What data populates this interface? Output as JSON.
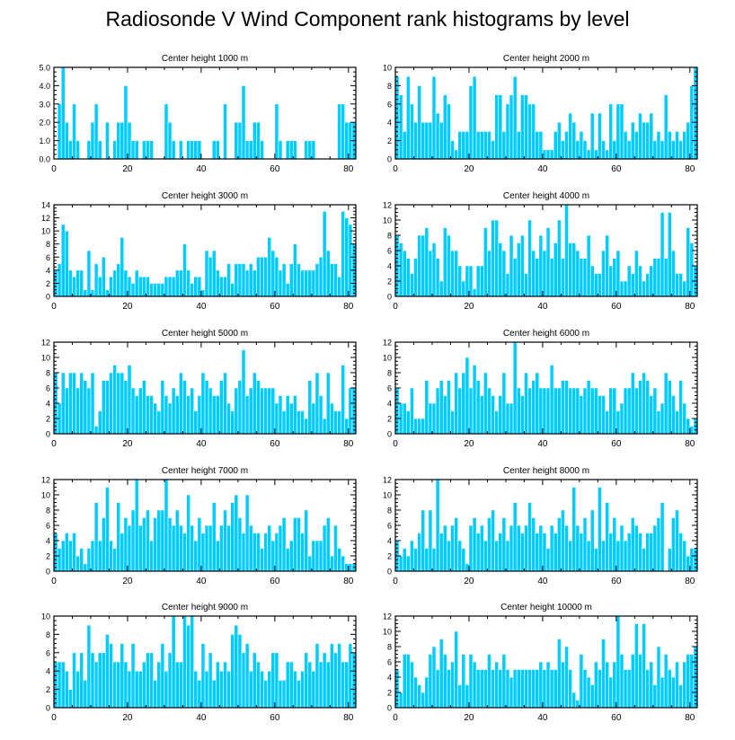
{
  "title": "Radiosonde V Wind Component rank histograms by level",
  "colors": {
    "bar": "#00ccff",
    "bar_edge": "#ffffff",
    "axis": "#000000"
  },
  "chart_data": [
    {
      "type": "bar",
      "title": "Center height 1000 m",
      "xlim": [
        0,
        82
      ],
      "ylim": [
        0,
        5
      ],
      "xticks": [
        "0",
        "20",
        "40",
        "60",
        "80"
      ],
      "yticks": [
        "0.0",
        "1.0",
        "2.0",
        "3.0",
        "4.0",
        "5.0"
      ],
      "values": [
        0,
        3,
        5,
        2,
        1,
        3,
        1,
        0,
        0,
        1,
        2,
        3,
        1,
        0,
        2,
        0,
        1,
        2,
        2,
        4,
        2,
        1,
        1,
        0,
        1,
        1,
        1,
        0,
        0,
        0,
        3,
        2,
        1,
        0,
        1,
        0,
        1,
        1,
        1,
        1,
        0,
        0,
        0,
        1,
        1,
        0,
        3,
        0,
        0,
        2,
        2,
        4,
        1,
        1,
        2,
        2,
        1,
        0,
        0,
        0,
        3,
        1,
        0,
        1,
        1,
        1,
        0,
        0,
        1,
        1,
        1,
        0,
        0,
        0,
        0,
        0,
        0,
        3,
        3,
        2,
        2,
        2
      ]
    },
    {
      "type": "bar",
      "title": "Center height 2000 m",
      "xlim": [
        0,
        82
      ],
      "ylim": [
        0,
        10
      ],
      "xticks": [
        "0",
        "20",
        "40",
        "60",
        "80"
      ],
      "yticks": [
        "0",
        "2",
        "4",
        "6",
        "8",
        "10"
      ],
      "values": [
        9,
        7,
        3,
        9,
        6,
        4,
        8,
        4,
        4,
        4,
        9,
        5,
        4,
        7,
        6,
        2,
        1,
        3,
        3,
        3,
        8,
        9,
        3,
        3,
        3,
        3,
        2,
        7,
        7,
        3,
        6,
        7,
        9,
        3,
        7,
        7,
        6,
        6,
        3,
        3,
        1,
        1,
        1,
        3,
        4,
        2,
        3,
        5,
        4,
        2,
        3,
        2,
        1,
        5,
        1,
        5,
        2,
        1,
        6,
        2,
        6,
        6,
        3,
        2,
        4,
        3,
        5,
        4,
        4,
        5,
        2,
        3,
        2,
        7,
        3,
        2,
        3,
        2,
        3,
        4,
        8,
        10
      ]
    },
    {
      "type": "bar",
      "title": "Center height 3000 m",
      "xlim": [
        0,
        82
      ],
      "ylim": [
        0,
        14
      ],
      "xticks": [
        "0",
        "20",
        "40",
        "60",
        "80"
      ],
      "yticks": [
        "0",
        "2",
        "4",
        "6",
        "8",
        "10",
        "12",
        "14"
      ],
      "values": [
        4,
        5,
        11,
        10,
        4,
        3,
        4,
        4,
        1,
        7,
        1,
        5,
        3,
        6,
        1,
        3,
        4,
        5,
        9,
        4,
        3,
        2,
        4,
        3,
        3,
        3,
        2,
        2,
        2,
        2,
        3,
        3,
        3,
        4,
        4,
        8,
        4,
        2,
        3,
        3,
        1,
        7,
        6,
        7,
        4,
        3,
        3,
        5,
        2,
        5,
        5,
        5,
        4,
        5,
        4,
        6,
        6,
        6,
        9,
        7,
        6,
        4,
        5,
        2,
        5,
        8,
        5,
        4,
        4,
        4,
        4,
        5,
        6,
        13,
        7,
        5,
        5,
        3,
        13,
        12,
        11,
        8
      ]
    },
    {
      "type": "bar",
      "title": "Center height 4000 m",
      "xlim": [
        0,
        82
      ],
      "ylim": [
        0,
        12
      ],
      "xticks": [
        "0",
        "20",
        "40",
        "60",
        "80"
      ],
      "yticks": [
        "0",
        "2",
        "4",
        "6",
        "8",
        "10",
        "12"
      ],
      "values": [
        8,
        7,
        6,
        5,
        3,
        5,
        8,
        8,
        9,
        6,
        7,
        5,
        2,
        9,
        8,
        6,
        6,
        4,
        2,
        4,
        4,
        1,
        4,
        4,
        9,
        6,
        10,
        10,
        7,
        6,
        3,
        8,
        5,
        7,
        8,
        3,
        10,
        6,
        5,
        8,
        6,
        9,
        5,
        7,
        10,
        5,
        12,
        7,
        7,
        6,
        5,
        5,
        8,
        4,
        3,
        3,
        6,
        8,
        4,
        5,
        6,
        2,
        2,
        4,
        3,
        6,
        4,
        2,
        3,
        4,
        5,
        5,
        11,
        5,
        11,
        6,
        3,
        3,
        2,
        9,
        7,
        4
      ]
    },
    {
      "type": "bar",
      "title": "Center height 5000 m",
      "xlim": [
        0,
        82
      ],
      "ylim": [
        0,
        12
      ],
      "xticks": [
        "0",
        "20",
        "40",
        "60",
        "80"
      ],
      "yticks": [
        "0",
        "2",
        "4",
        "6",
        "8",
        "10",
        "12"
      ],
      "values": [
        8,
        4,
        8,
        6,
        8,
        8,
        6,
        8,
        7,
        6,
        8,
        1,
        3,
        7,
        7,
        8,
        9,
        8,
        8,
        7,
        9,
        6,
        5,
        6,
        7,
        5,
        5,
        4,
        3,
        7,
        5,
        4,
        6,
        5,
        8,
        7,
        5,
        6,
        3,
        5,
        8,
        7,
        6,
        5,
        5,
        7,
        8,
        4,
        3,
        6,
        7,
        11,
        5,
        6,
        8,
        7,
        6,
        6,
        6,
        6,
        4,
        5,
        3,
        5,
        4,
        5,
        3,
        3,
        2,
        7,
        4,
        8,
        5,
        2,
        8,
        4,
        3,
        3,
        9,
        2,
        6,
        6
      ]
    },
    {
      "type": "bar",
      "title": "Center height 6000 m",
      "xlim": [
        0,
        82
      ],
      "ylim": [
        0,
        12
      ],
      "xticks": [
        "0",
        "20",
        "40",
        "60",
        "80"
      ],
      "yticks": [
        "0",
        "2",
        "4",
        "6",
        "8",
        "10",
        "12"
      ],
      "values": [
        6,
        4,
        4,
        3,
        6,
        2,
        2,
        2,
        7,
        4,
        4,
        6,
        7,
        5,
        7,
        3,
        8,
        6,
        8,
        10,
        6,
        9,
        7,
        5,
        8,
        6,
        5,
        3,
        5,
        8,
        4,
        4,
        12,
        6,
        5,
        8,
        6,
        7,
        8,
        6,
        6,
        6,
        9,
        6,
        6,
        7,
        7,
        6,
        6,
        6,
        5,
        6,
        7,
        6,
        6,
        5,
        5,
        3,
        6,
        6,
        3,
        4,
        6,
        6,
        8,
        6,
        7,
        8,
        7,
        5,
        6,
        3,
        4,
        8,
        7,
        5,
        3,
        7,
        4,
        2,
        1,
        2
      ]
    },
    {
      "type": "bar",
      "title": "Center height 7000 m",
      "xlim": [
        0,
        82
      ],
      "ylim": [
        0,
        12
      ],
      "xticks": [
        "0",
        "20",
        "40",
        "60",
        "80"
      ],
      "yticks": [
        "0",
        "2",
        "4",
        "6",
        "8",
        "10",
        "12"
      ],
      "values": [
        5,
        3,
        4,
        5,
        4,
        5,
        2,
        3,
        1,
        3,
        4,
        9,
        4,
        7,
        11,
        4,
        3,
        9,
        5,
        7,
        6,
        8,
        12,
        6,
        7,
        8,
        4,
        7,
        8,
        8,
        12,
        7,
        6,
        8,
        6,
        5,
        10,
        6,
        4,
        7,
        5,
        6,
        6,
        9,
        4,
        6,
        8,
        6,
        9,
        10,
        7,
        5,
        10,
        6,
        5,
        5,
        3,
        5,
        6,
        4,
        5,
        6,
        7,
        3,
        4,
        7,
        7,
        5,
        8,
        2,
        4,
        4,
        4,
        6,
        7,
        2,
        6,
        3,
        2,
        1,
        1,
        1
      ]
    },
    {
      "type": "bar",
      "title": "Center height 8000 m",
      "xlim": [
        0,
        82
      ],
      "ylim": [
        0,
        12
      ],
      "xticks": [
        "0",
        "20",
        "40",
        "60",
        "80"
      ],
      "yticks": [
        "0",
        "2",
        "4",
        "6",
        "8",
        "10",
        "12"
      ],
      "values": [
        4,
        2,
        3,
        2,
        4,
        3,
        5,
        8,
        3,
        8,
        3,
        12,
        5,
        6,
        4,
        6,
        7,
        4,
        3,
        1,
        6,
        7,
        5,
        6,
        4,
        7,
        8,
        4,
        5,
        7,
        4,
        6,
        9,
        6,
        5,
        6,
        9,
        7,
        5,
        6,
        5,
        3,
        6,
        5,
        7,
        8,
        6,
        4,
        11,
        6,
        5,
        7,
        4,
        8,
        3,
        11,
        4,
        9,
        5,
        7,
        4,
        6,
        4,
        5,
        7,
        6,
        5,
        3,
        5,
        5,
        6,
        7,
        9,
        0,
        3,
        7,
        8,
        5,
        4,
        2,
        3,
        3
      ]
    },
    {
      "type": "bar",
      "title": "Center height 9000 m",
      "xlim": [
        0,
        82
      ],
      "ylim": [
        0,
        10
      ],
      "xticks": [
        "0",
        "20",
        "40",
        "60",
        "80"
      ],
      "yticks": [
        "0",
        "2",
        "4",
        "6",
        "8",
        "10"
      ],
      "values": [
        5,
        5,
        5,
        4,
        2,
        6,
        4,
        6,
        3,
        9,
        6,
        5,
        6,
        6,
        8,
        7,
        5,
        5,
        7,
        5,
        4,
        7,
        4,
        4,
        5,
        6,
        6,
        3,
        5,
        7,
        4,
        6,
        10,
        5,
        5,
        10,
        9,
        10,
        4,
        3,
        7,
        4,
        6,
        3,
        5,
        4,
        5,
        4,
        8,
        9,
        8,
        6,
        7,
        4,
        6,
        5,
        4,
        3,
        4,
        6,
        6,
        3,
        3,
        5,
        5,
        4,
        3,
        4,
        6,
        5,
        4,
        7,
        5,
        6,
        5,
        7,
        6,
        7,
        5,
        5,
        7,
        6
      ]
    },
    {
      "type": "bar",
      "title": "Center height 10000 m",
      "xlim": [
        0,
        82
      ],
      "ylim": [
        0,
        12
      ],
      "xticks": [
        "0",
        "20",
        "40",
        "60",
        "80"
      ],
      "yticks": [
        "0",
        "2",
        "4",
        "6",
        "8",
        "10",
        "12"
      ],
      "values": [
        5,
        2,
        7,
        7,
        6,
        4,
        3,
        2,
        4,
        7,
        8,
        5,
        9,
        7,
        5,
        6,
        10,
        3,
        7,
        3,
        7,
        6,
        5,
        5,
        5,
        7,
        5,
        6,
        5,
        7,
        5,
        4,
        5,
        5,
        5,
        5,
        5,
        5,
        5,
        6,
        5,
        6,
        5,
        5,
        9,
        6,
        8,
        5,
        2,
        1,
        7,
        5,
        4,
        3,
        6,
        5,
        9,
        6,
        4,
        6,
        12,
        7,
        5,
        5,
        7,
        11,
        7,
        11,
        5,
        6,
        3,
        8,
        4,
        7,
        5,
        4,
        6,
        3,
        6,
        7,
        7,
        8
      ]
    }
  ]
}
